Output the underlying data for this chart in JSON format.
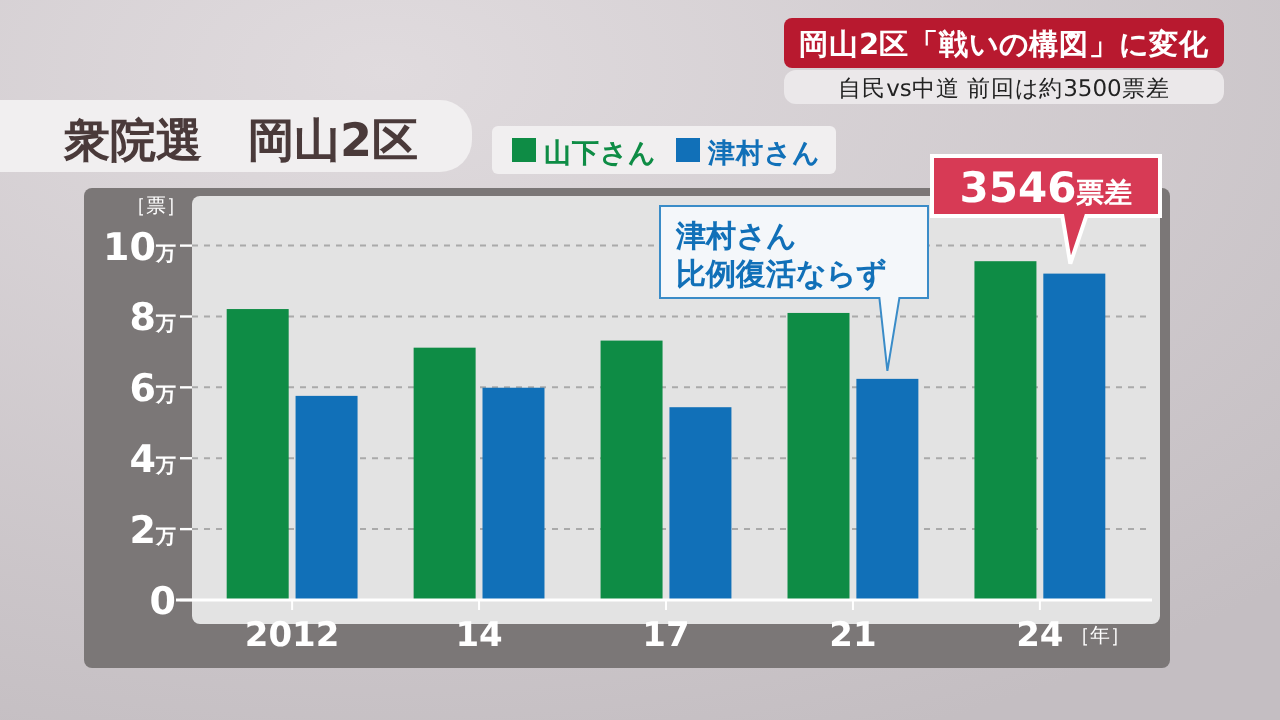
{
  "chart_data": {
    "type": "bar",
    "title": "衆院選　岡山2区",
    "subtitle": "岡山2区「戦いの構図」に変化",
    "annotations": [
      "自民vs中道 前回は約3500票差",
      {
        "text": "津村さん比例復活ならず",
        "x": "21",
        "y": 6.24
      },
      {
        "text": "3546票差",
        "x": "24",
        "y": 9.21
      }
    ],
    "ylabel": "［票］",
    "xlabel": "［年］",
    "categories": [
      "2012",
      "14",
      "17",
      "21",
      "24"
    ],
    "series": [
      {
        "name": "山下さん",
        "color": "#0e8c45",
        "values": [
          8.21,
          7.12,
          7.32,
          8.1,
          9.56
        ]
      },
      {
        "name": "津村さん",
        "color": "#1170b8",
        "values": [
          5.76,
          5.99,
          5.44,
          6.24,
          9.21
        ]
      }
    ],
    "ylim": [
      0,
      11.4
    ],
    "yticks": [
      0,
      {
        "value": 2,
        "label": "2万"
      },
      {
        "value": 4,
        "label": "4万"
      },
      {
        "value": 6,
        "label": "6万"
      },
      {
        "value": 8,
        "label": "8万"
      },
      {
        "value": 10,
        "label": "10万"
      }
    ],
    "grid": "y",
    "legend": "top left"
  }
}
